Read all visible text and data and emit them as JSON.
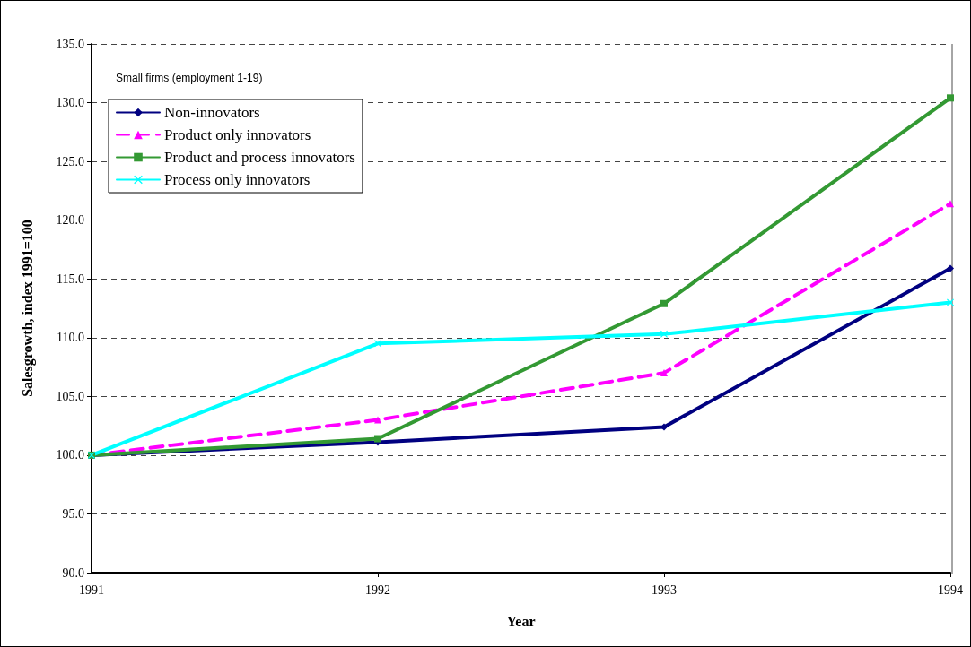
{
  "chart_data": {
    "type": "line",
    "xlabel": "Year",
    "ylabel": "Salesgrowth, index 1991=100",
    "annotations": [
      "Small firms (employment 1-19)"
    ],
    "categories": [
      "1991",
      "1992",
      "1993",
      "1994"
    ],
    "series": [
      {
        "name": "Non-innovators",
        "color": "#000080",
        "marker": "diamond",
        "line_style": "solid",
        "values": [
          100.0,
          101.1,
          102.4,
          115.9
        ]
      },
      {
        "name": "Product only innovators",
        "color": "#ff00ff",
        "marker": "triangle",
        "line_style": "dashed",
        "values": [
          100.0,
          103.0,
          107.0,
          121.4
        ]
      },
      {
        "name": "Product and process innovators",
        "color": "#339933",
        "marker": "square",
        "line_style": "solid",
        "values": [
          100.0,
          101.4,
          112.9,
          130.4
        ]
      },
      {
        "name": "Process only innovators",
        "color": "#00ffff",
        "marker": "cross",
        "line_style": "solid",
        "values": [
          100.0,
          109.5,
          110.3,
          113.0
        ]
      }
    ],
    "ylim": [
      90,
      135
    ],
    "yticks": [
      {
        "value": 90,
        "label": "90.0"
      },
      {
        "value": 95,
        "label": "95.0"
      },
      {
        "value": 100,
        "label": "100.0"
      },
      {
        "value": 105,
        "label": "105.0"
      },
      {
        "value": 110,
        "label": "110.0"
      },
      {
        "value": 115,
        "label": "115.0"
      },
      {
        "value": 120,
        "label": "120.0"
      },
      {
        "value": 125,
        "label": "125.0"
      },
      {
        "value": 130,
        "label": "130.0"
      },
      {
        "value": 135,
        "label": "135.0"
      }
    ],
    "grid": "y",
    "legend": "top left"
  }
}
